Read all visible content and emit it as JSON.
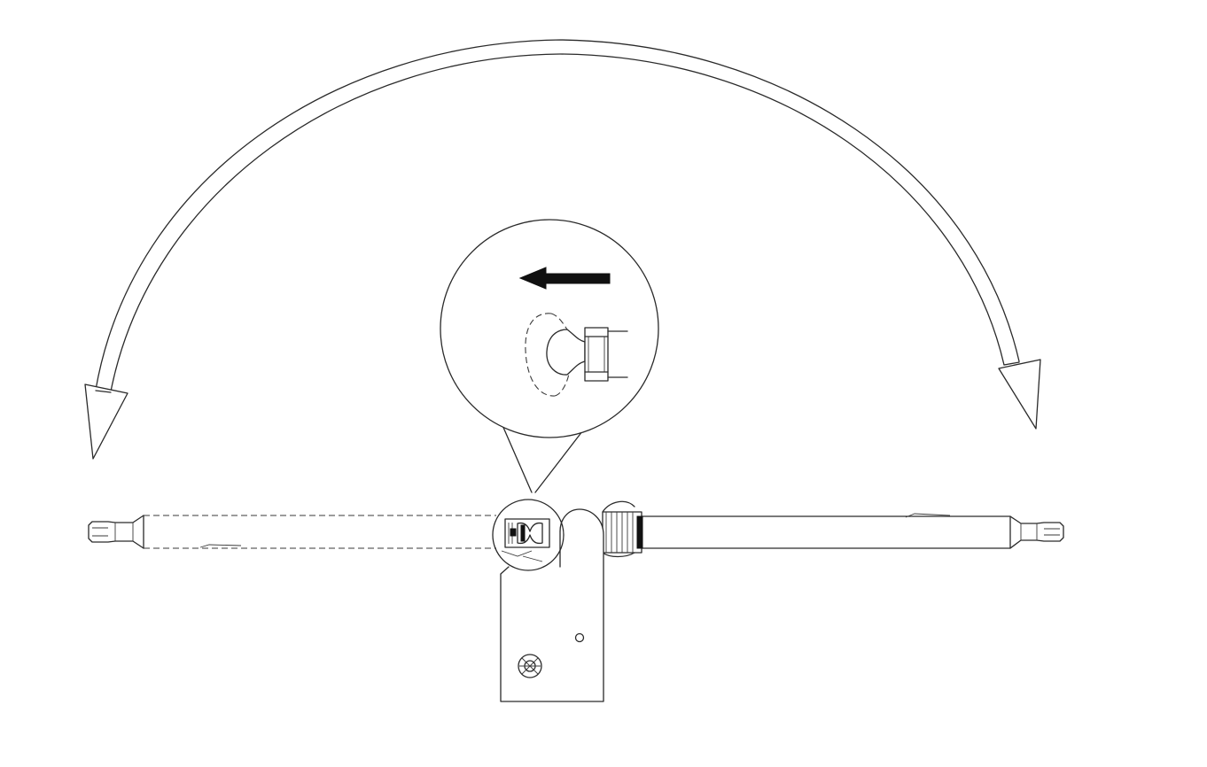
{
  "figure": {
    "type": "technical-line-drawing",
    "palette": {
      "line": "#2a2a2a",
      "fill": "#ffffff",
      "accent": "#111111"
    },
    "symbols": [
      "double-headed-curved-arrow",
      "magnified-detail-callout",
      "push-direction-arrow-left",
      "rotating-arm",
      "mounting-bracket"
    ]
  }
}
